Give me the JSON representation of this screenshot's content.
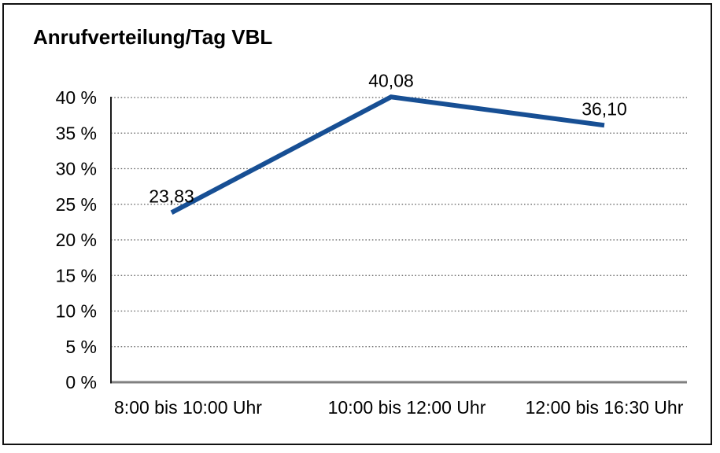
{
  "window": {
    "background_color": "#ffffff",
    "border_color": "#111111"
  },
  "chart_data": {
    "type": "line",
    "title": "Anrufverteilung/Tag VBL",
    "categories": [
      "8:00 bis 10:00 Uhr",
      "10:00 bis 12:00 Uhr",
      "12:00 bis 16:30 Uhr"
    ],
    "values": [
      23.83,
      40.08,
      36.1
    ],
    "data_labels": [
      "23,83",
      "40,08",
      "36,10"
    ],
    "y_tick_values": [
      40,
      35,
      30,
      25,
      20,
      15,
      10,
      5,
      0
    ],
    "y_tick_labels": [
      "40 %",
      "35 %",
      "30 %",
      "25 %",
      "20 %",
      "15 %",
      "10 %",
      "5 %",
      "0 %"
    ],
    "ylim": [
      0,
      40
    ],
    "xlabel": "",
    "ylabel": "",
    "grid": "horizontal-dotted",
    "legend": "none",
    "line_color": "#174F94",
    "grid_color": "#5f5f5f",
    "x_axis_color": "#808080",
    "y_axis_color": "#1a1a1a",
    "text_color": "#000000"
  }
}
